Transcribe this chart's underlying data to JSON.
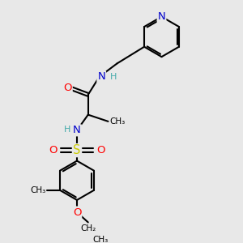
{
  "bg_color": "#e8e8e8",
  "bond_color": "#000000",
  "bond_width": 1.5,
  "atom_colors": {
    "N": "#0000cc",
    "O": "#ff0000",
    "S": "#cccc00",
    "H": "#44aaaa",
    "C": "#000000"
  },
  "font_size": 8.5,
  "fig_size": [
    3.0,
    3.0
  ],
  "xlim": [
    0,
    10
  ],
  "ylim": [
    0,
    10
  ]
}
